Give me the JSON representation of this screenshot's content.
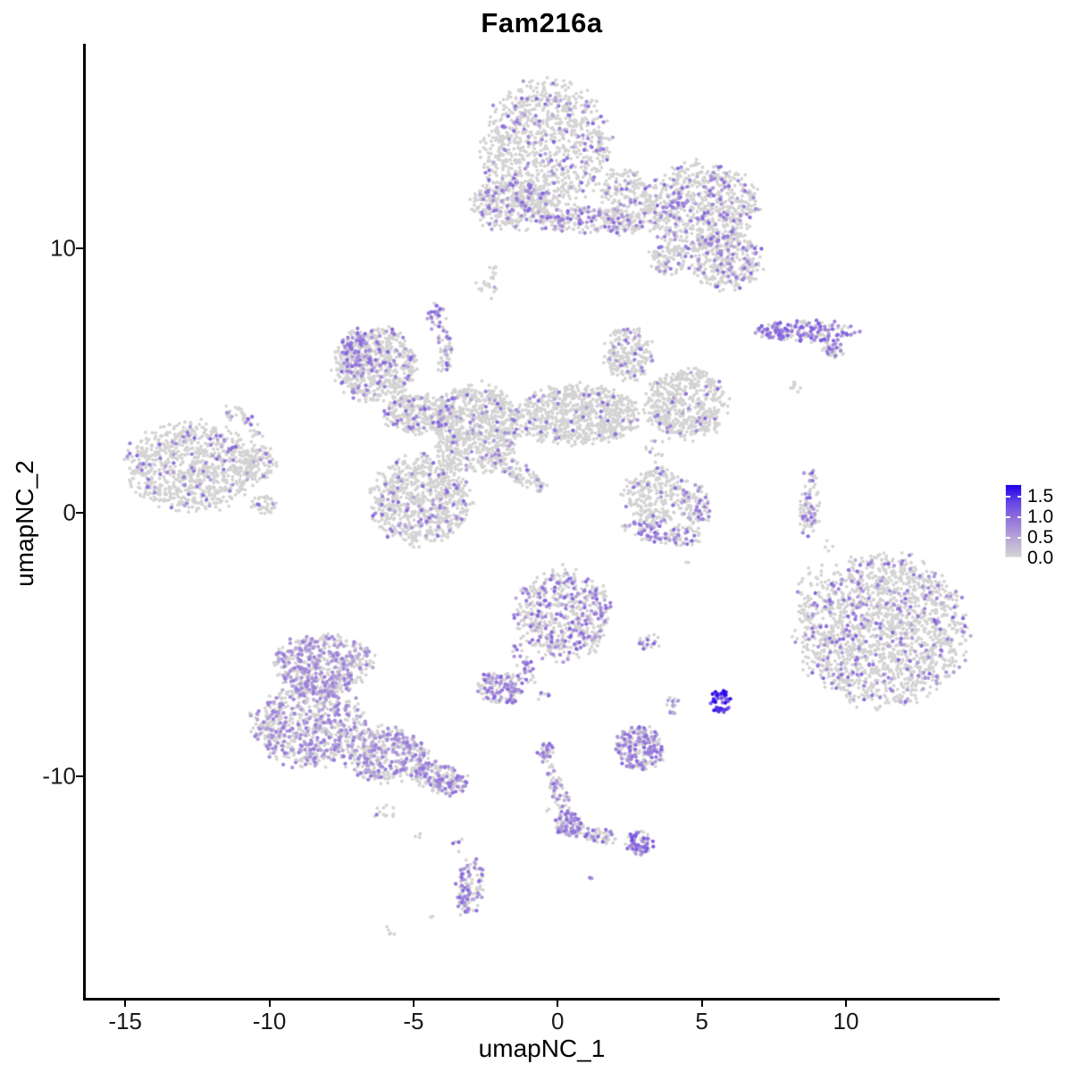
{
  "chart_data": {
    "type": "scatter",
    "title": "Fam216a",
    "xlabel": "umapNC_1",
    "ylabel": "umapNC_2",
    "x_ticks": [
      -15,
      -10,
      -5,
      0,
      5,
      10
    ],
    "y_ticks": [
      10,
      0,
      -10
    ],
    "x_range": [
      -16.4,
      15.3
    ],
    "y_range": [
      -18.4,
      17.7
    ],
    "grid": false,
    "background": "#ffffff",
    "point_colors": {
      "zero": "#d3d3d3",
      "gradient": [
        "#d3d3d3",
        "#b7a6d8",
        "#9678dc",
        "#6946e6",
        "#1e00eb"
      ],
      "vmax": 1.75
    },
    "legend": {
      "position": "right",
      "labels": [
        "1.5",
        "1.0",
        "0.5",
        "0.0"
      ],
      "values": [
        1.5,
        1.0,
        0.5,
        0.0
      ]
    },
    "default_expr_range": [
      0.35,
      1.05
    ],
    "clusters": [
      {
        "id": "top-lobe",
        "x": -0.43,
        "y": 13.82,
        "rx": 2.17,
        "ry": 2.43,
        "rot": 0,
        "n": 1000,
        "f": 0.13
      },
      {
        "id": "top-left-blob",
        "x": -1.61,
        "y": 11.69,
        "rx": 1.39,
        "ry": 1.01,
        "rot": 0,
        "n": 330,
        "f": 0.22
      },
      {
        "id": "top-bridge",
        "x": 0.96,
        "y": 11.05,
        "rx": 1.7,
        "ry": 0.51,
        "rot": 0,
        "n": 220,
        "f": 0.25
      },
      {
        "id": "top-right-lobe",
        "x": 4.98,
        "y": 11.55,
        "rx": 1.92,
        "ry": 1.62,
        "rot": 0,
        "n": 750,
        "f": 0.18
      },
      {
        "id": "top-right-ext",
        "x": 5.82,
        "y": 9.53,
        "rx": 1.24,
        "ry": 1.11,
        "rot": 0,
        "n": 300,
        "f": 0.22
      },
      {
        "id": "top-small-bridge",
        "x": 3.84,
        "y": 9.59,
        "rx": 0.68,
        "ry": 0.61,
        "rot": 0,
        "n": 100,
        "f": 0.15
      },
      {
        "id": "top-neck",
        "x": 2.35,
        "y": 11.79,
        "rx": 0.87,
        "ry": 1.28,
        "rot": 0,
        "n": 220,
        "f": 0.12
      },
      {
        "id": "tiny-below-top",
        "x": -2.45,
        "y": 8.65,
        "rx": 0.37,
        "ry": 0.51,
        "rot": 0,
        "n": 20,
        "f": 0.15
      },
      {
        "id": "tiny-dot-above",
        "x": -2.23,
        "y": 9.26,
        "rx": 0.15,
        "ry": 0.15,
        "rot": 0,
        "n": 4,
        "f": 0
      },
      {
        "id": "right-band",
        "x": 8.64,
        "y": 6.86,
        "rx": 1.7,
        "ry": 0.41,
        "rot": 0,
        "n": 200,
        "f": 0.55,
        "vr": [
          0.5,
          1.15
        ]
      },
      {
        "id": "right-band-tail",
        "x": 9.57,
        "y": 6.15,
        "rx": 0.4,
        "ry": 0.3,
        "rot": -35,
        "n": 35,
        "f": 0.5,
        "vr": [
          0.5,
          1.0
        ]
      },
      {
        "id": "right-band-strays",
        "x": 8.33,
        "y": 4.83,
        "rx": 0.22,
        "ry": 0.41,
        "rot": 0,
        "n": 9,
        "f": 0
      },
      {
        "id": "ctr-topleft-blob",
        "x": -6.32,
        "y": 5.61,
        "rx": 1.39,
        "ry": 1.35,
        "rot": 0,
        "n": 600,
        "f": 0.13
      },
      {
        "id": "ctr-topleft-edge",
        "x": -7.0,
        "y": 5.95,
        "rx": 0.56,
        "ry": 0.95,
        "rot": 0,
        "n": 110,
        "f": 0.5
      },
      {
        "id": "ctr-top-blob",
        "x": -4.21,
        "y": 7.47,
        "rx": 0.34,
        "ry": 0.54,
        "rot": 0,
        "n": 28,
        "f": 0.6
      },
      {
        "id": "ctr-top-arm",
        "x": -3.93,
        "y": 6.05,
        "rx": 0.25,
        "ry": 0.95,
        "rot": 0,
        "n": 60,
        "f": 0.2
      },
      {
        "id": "ctr-bridge",
        "x": -4.83,
        "y": 3.75,
        "rx": 1.18,
        "ry": 0.74,
        "rot": 0,
        "n": 280,
        "f": 0.12
      },
      {
        "id": "ctr-core",
        "x": -2.85,
        "y": 3.18,
        "rx": 1.49,
        "ry": 1.62,
        "rot": 0,
        "n": 760,
        "f": 0.07
      },
      {
        "id": "ctr-right-arm",
        "x": 0.65,
        "y": 3.68,
        "rx": 2.23,
        "ry": 1.11,
        "rot": 0,
        "n": 760,
        "f": 0.05
      },
      {
        "id": "ctr-arm-bump",
        "x": 2.45,
        "y": 6.01,
        "rx": 0.84,
        "ry": 1.01,
        "rot": 0,
        "n": 220,
        "f": 0.1
      },
      {
        "id": "ctr-right-lobe",
        "x": 4.46,
        "y": 4.12,
        "rx": 1.39,
        "ry": 1.28,
        "rot": 0,
        "n": 520,
        "f": 0.05
      },
      {
        "id": "ctr-bottom-lobe",
        "x": -4.77,
        "y": 0.47,
        "rx": 1.7,
        "ry": 1.62,
        "rot": 0,
        "n": 760,
        "f": 0.1
      },
      {
        "id": "ctr-diag-arm",
        "x": -1.42,
        "y": 1.55,
        "rx": 1.24,
        "ry": 0.34,
        "rot": -35,
        "n": 100,
        "f": 0.2
      },
      {
        "id": "ctr-sparse-link",
        "x": 3.44,
        "y": 2.33,
        "rx": 0.37,
        "ry": 0.51,
        "rot": 0,
        "n": 10,
        "f": 0.1
      },
      {
        "id": "far-left",
        "x": -12.66,
        "y": 1.72,
        "rx": 2.23,
        "ry": 1.62,
        "rot": 0,
        "n": 860,
        "f": 0.07
      },
      {
        "id": "far-left-arm",
        "x": -10.9,
        "y": 3.45,
        "rx": 0.87,
        "ry": 0.3,
        "rot": -40,
        "n": 40,
        "f": 0.25
      },
      {
        "id": "far-left-bump",
        "x": -10.34,
        "y": 1.82,
        "rx": 0.56,
        "ry": 0.68,
        "rot": 0,
        "n": 100,
        "f": 0.1
      },
      {
        "id": "far-left-bottom",
        "x": -10.19,
        "y": 0.3,
        "rx": 0.43,
        "ry": 0.34,
        "rot": 0,
        "n": 45,
        "f": 0.1
      },
      {
        "id": "mid-hook-body",
        "x": 3.44,
        "y": 0.64,
        "rx": 1.18,
        "ry": 1.01,
        "rot": 0,
        "n": 280,
        "f": 0.08
      },
      {
        "id": "mid-hook-crescent",
        "x": 3.65,
        "y": -0.78,
        "rx": 1.39,
        "ry": 0.41,
        "rot": -10,
        "n": 120,
        "f": 0.35
      },
      {
        "id": "mid-hook-right",
        "x": 4.83,
        "y": 0.14,
        "rx": 0.43,
        "ry": 0.88,
        "rot": 0,
        "n": 80,
        "f": 0.3
      },
      {
        "id": "thin-vertical",
        "x": 8.73,
        "y": 0.37,
        "rx": 0.34,
        "ry": 1.35,
        "rot": 0,
        "n": 90,
        "f": 0.25
      },
      {
        "id": "thin-vert-strays",
        "x": 9.41,
        "y": -1.28,
        "rx": 0.15,
        "ry": 0.27,
        "rot": 0,
        "n": 4,
        "f": 0
      },
      {
        "id": "big-right",
        "x": 11.27,
        "y": -4.46,
        "rx": 2.85,
        "ry": 2.77,
        "rot": 0,
        "n": 1700,
        "f": 0.14
      },
      {
        "id": "big-right-scatter",
        "x": 9.01,
        "y": -2.91,
        "rx": 0.77,
        "ry": 1.01,
        "rot": 0,
        "n": 35,
        "f": 0.1
      },
      {
        "id": "ctr-kite",
        "x": 0.19,
        "y": -3.85,
        "rx": 1.61,
        "ry": 1.69,
        "rot": 0,
        "n": 600,
        "f": 0.27
      },
      {
        "id": "kite-neck",
        "x": -1.21,
        "y": -5.68,
        "rx": 0.28,
        "ry": 0.88,
        "rot": 20,
        "n": 35,
        "f": 0.4
      },
      {
        "id": "kite-foot-blob",
        "x": -1.98,
        "y": -6.66,
        "rx": 0.8,
        "ry": 0.61,
        "rot": 0,
        "n": 140,
        "f": 0.45
      },
      {
        "id": "kite-foot-pair",
        "x": -0.56,
        "y": -6.96,
        "rx": 0.31,
        "ry": 0.2,
        "rot": 0,
        "n": 8,
        "f": 0.3
      },
      {
        "id": "small-mid-strip",
        "x": 3.22,
        "y": -4.9,
        "rx": 0.46,
        "ry": 0.27,
        "rot": 0,
        "n": 22,
        "f": 0.45
      },
      {
        "id": "dark-blue-clump",
        "x": 5.63,
        "y": -7.16,
        "rx": 0.37,
        "ry": 0.44,
        "rot": 0,
        "n": 45,
        "f": 1.0,
        "vr": [
          1.05,
          1.75
        ]
      },
      {
        "id": "light-companion",
        "x": 3.99,
        "y": -7.3,
        "rx": 0.25,
        "ry": 0.37,
        "rot": 0,
        "n": 16,
        "f": 0.6,
        "vr": [
          0.3,
          0.7
        ]
      },
      {
        "id": "botleft-top",
        "x": -8.11,
        "y": -5.74,
        "rx": 1.7,
        "ry": 1.08,
        "rot": 0,
        "n": 540,
        "f": 0.38,
        "vr": [
          0.3,
          0.85
        ]
      },
      {
        "id": "botleft-main",
        "x": -8.64,
        "y": -8.04,
        "rx": 1.92,
        "ry": 1.52,
        "rot": 0,
        "n": 700,
        "f": 0.4,
        "vr": [
          0.3,
          0.85
        ]
      },
      {
        "id": "botleft-east",
        "x": -5.94,
        "y": -9.16,
        "rx": 1.39,
        "ry": 1.01,
        "rot": 0,
        "n": 420,
        "f": 0.35,
        "vr": [
          0.3,
          0.9
        ]
      },
      {
        "id": "botleft-tail",
        "x": -4.09,
        "y": -10.07,
        "rx": 0.99,
        "ry": 0.54,
        "rot": -15,
        "n": 200,
        "f": 0.45,
        "vr": [
          0.35,
          0.95
        ]
      },
      {
        "id": "botleft-strays",
        "x": -6.07,
        "y": -11.35,
        "rx": 0.37,
        "ry": 0.47,
        "rot": 0,
        "n": 12,
        "f": 0.1
      },
      {
        "id": "botleft-stray2",
        "x": -4.83,
        "y": -12.23,
        "rx": 0.12,
        "ry": 0.12,
        "rot": 0,
        "n": 4,
        "f": 0
      },
      {
        "id": "bottom-mid-blob",
        "x": 2.88,
        "y": -8.92,
        "rx": 0.84,
        "ry": 0.84,
        "rot": 0,
        "n": 230,
        "f": 0.45
      },
      {
        "id": "vtrail-start",
        "x": -0.4,
        "y": -9.09,
        "rx": 0.31,
        "ry": 0.34,
        "rot": 0,
        "n": 28,
        "f": 0.6
      },
      {
        "id": "vtrail-seg1",
        "x": 0.03,
        "y": -10.54,
        "rx": 0.25,
        "ry": 1.18,
        "rot": 20,
        "n": 70,
        "f": 0.4
      },
      {
        "id": "vtrail-elbow",
        "x": 0.37,
        "y": -11.82,
        "rx": 0.5,
        "ry": 0.44,
        "rot": 0,
        "n": 100,
        "f": 0.45
      },
      {
        "id": "vtrail-seg2",
        "x": 1.49,
        "y": -12.23,
        "rx": 0.8,
        "ry": 0.27,
        "rot": -12,
        "n": 60,
        "f": 0.35
      },
      {
        "id": "vtrail-end",
        "x": 2.85,
        "y": -12.5,
        "rx": 0.5,
        "ry": 0.44,
        "rot": 0,
        "n": 80,
        "f": 0.5,
        "vr": [
          0.4,
          1.2
        ]
      },
      {
        "id": "vtrail-dot",
        "x": 1.11,
        "y": -13.78,
        "rx": 0.09,
        "ry": 0.09,
        "rot": 0,
        "n": 2,
        "f": 0.7
      },
      {
        "id": "vtrail-grey-dot",
        "x": -0.34,
        "y": -11.28,
        "rx": 0.09,
        "ry": 0.09,
        "rot": 0,
        "n": 2,
        "f": 0
      },
      {
        "id": "bottom-comma",
        "x": -3.03,
        "y": -14.16,
        "rx": 0.46,
        "ry": 1.11,
        "rot": -8,
        "n": 110,
        "f": 0.55
      },
      {
        "id": "comma-top-strays",
        "x": -3.47,
        "y": -12.6,
        "rx": 0.19,
        "ry": 0.41,
        "rot": 0,
        "n": 6,
        "f": 0.2
      },
      {
        "id": "tiny-pair-bottom",
        "x": -5.76,
        "y": -15.84,
        "rx": 0.25,
        "ry": 0.17,
        "rot": -30,
        "n": 5,
        "f": 0
      },
      {
        "id": "tiny-dot-bottom",
        "x": -4.37,
        "y": -15.34,
        "rx": 0.09,
        "ry": 0.09,
        "rot": 0,
        "n": 2,
        "f": 0
      },
      {
        "id": "stray-a",
        "x": 4.52,
        "y": -1.89,
        "rx": 0.09,
        "ry": 0.09,
        "rot": 0,
        "n": 2,
        "f": 0
      },
      {
        "id": "stray-b",
        "x": 3.07,
        "y": 2.43,
        "rx": 0.09,
        "ry": 0.09,
        "rot": 0,
        "n": 2,
        "f": 0
      }
    ]
  }
}
